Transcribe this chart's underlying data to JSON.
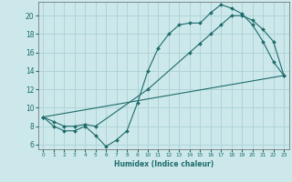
{
  "xlabel": "Humidex (Indice chaleur)",
  "bg_color": "#cce8eb",
  "grid_color": "#b0d4d8",
  "line_color": "#1e6b6b",
  "xlim": [
    -0.5,
    23.5
  ],
  "ylim": [
    5.5,
    21.5
  ],
  "xticks": [
    0,
    1,
    2,
    3,
    4,
    5,
    6,
    7,
    8,
    9,
    10,
    11,
    12,
    13,
    14,
    15,
    16,
    17,
    18,
    19,
    20,
    21,
    22,
    23
  ],
  "yticks": [
    6,
    8,
    10,
    12,
    14,
    16,
    18,
    20
  ],
  "line1_x": [
    0,
    1,
    2,
    3,
    4,
    5,
    6,
    7,
    8,
    9,
    10,
    11,
    12,
    13,
    14,
    15,
    16,
    17,
    18,
    19,
    20,
    21,
    22,
    23
  ],
  "line1_y": [
    9,
    8,
    7.5,
    7.5,
    8,
    7,
    5.8,
    6.5,
    7.5,
    10.5,
    14,
    16.5,
    18,
    19,
    19.2,
    19.2,
    20.3,
    21.2,
    20.8,
    20.2,
    19,
    17.2,
    15,
    13.5
  ],
  "line2_x": [
    0,
    1,
    2,
    3,
    4,
    5,
    10,
    14,
    15,
    16,
    17,
    18,
    19,
    20,
    21,
    22,
    23
  ],
  "line2_y": [
    9,
    8.5,
    8,
    8,
    8.2,
    8,
    12,
    16,
    17,
    18,
    19,
    20,
    20,
    19.5,
    18.5,
    17.2,
    13.5
  ],
  "line3_x": [
    0,
    23
  ],
  "line3_y": [
    9,
    13.5
  ]
}
